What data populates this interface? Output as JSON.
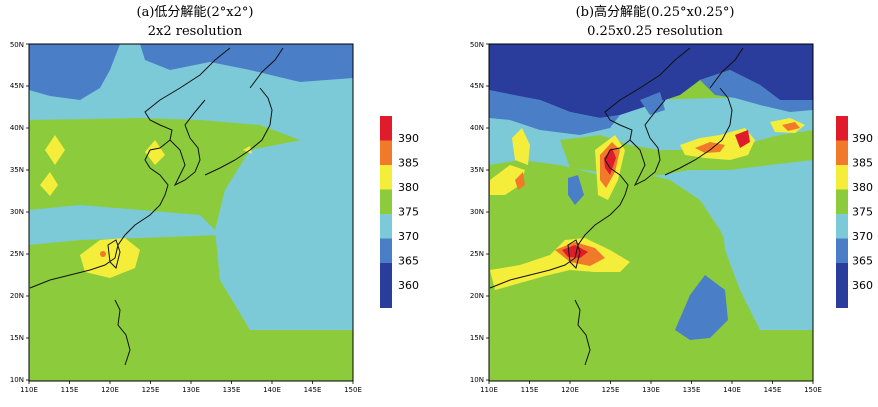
{
  "panels": [
    {
      "title": "(a)低分解能(2°x2°)",
      "subtitle": "2x2 resolution"
    },
    {
      "title": "(b)高分解能(0.25°x0.25°)",
      "subtitle": "0.25x0.25 resolution"
    }
  ],
  "axes": {
    "lon_ticks": [
      "110E",
      "115E",
      "120E",
      "125E",
      "130E",
      "135E",
      "140E",
      "145E",
      "150E"
    ],
    "lat_ticks": [
      "10N",
      "15N",
      "20N",
      "25N",
      "30N",
      "35N",
      "40N",
      "45N",
      "50N"
    ]
  },
  "legend": {
    "levels": [
      "390",
      "385",
      "380",
      "375",
      "370",
      "365",
      "360"
    ],
    "colors": [
      "#e01b2c",
      "#f07a2a",
      "#f4ee3a",
      "#8ccc3c",
      "#7ccad8",
      "#4a7fc8",
      "#2a3c9c"
    ]
  },
  "colors": {
    "c360": "#2a3c9c",
    "c365": "#4a7fc8",
    "c370": "#7ccad8",
    "c375": "#8ccc3c",
    "c380": "#f4ee3a",
    "c385": "#f07a2a",
    "c390": "#e01b2c"
  }
}
